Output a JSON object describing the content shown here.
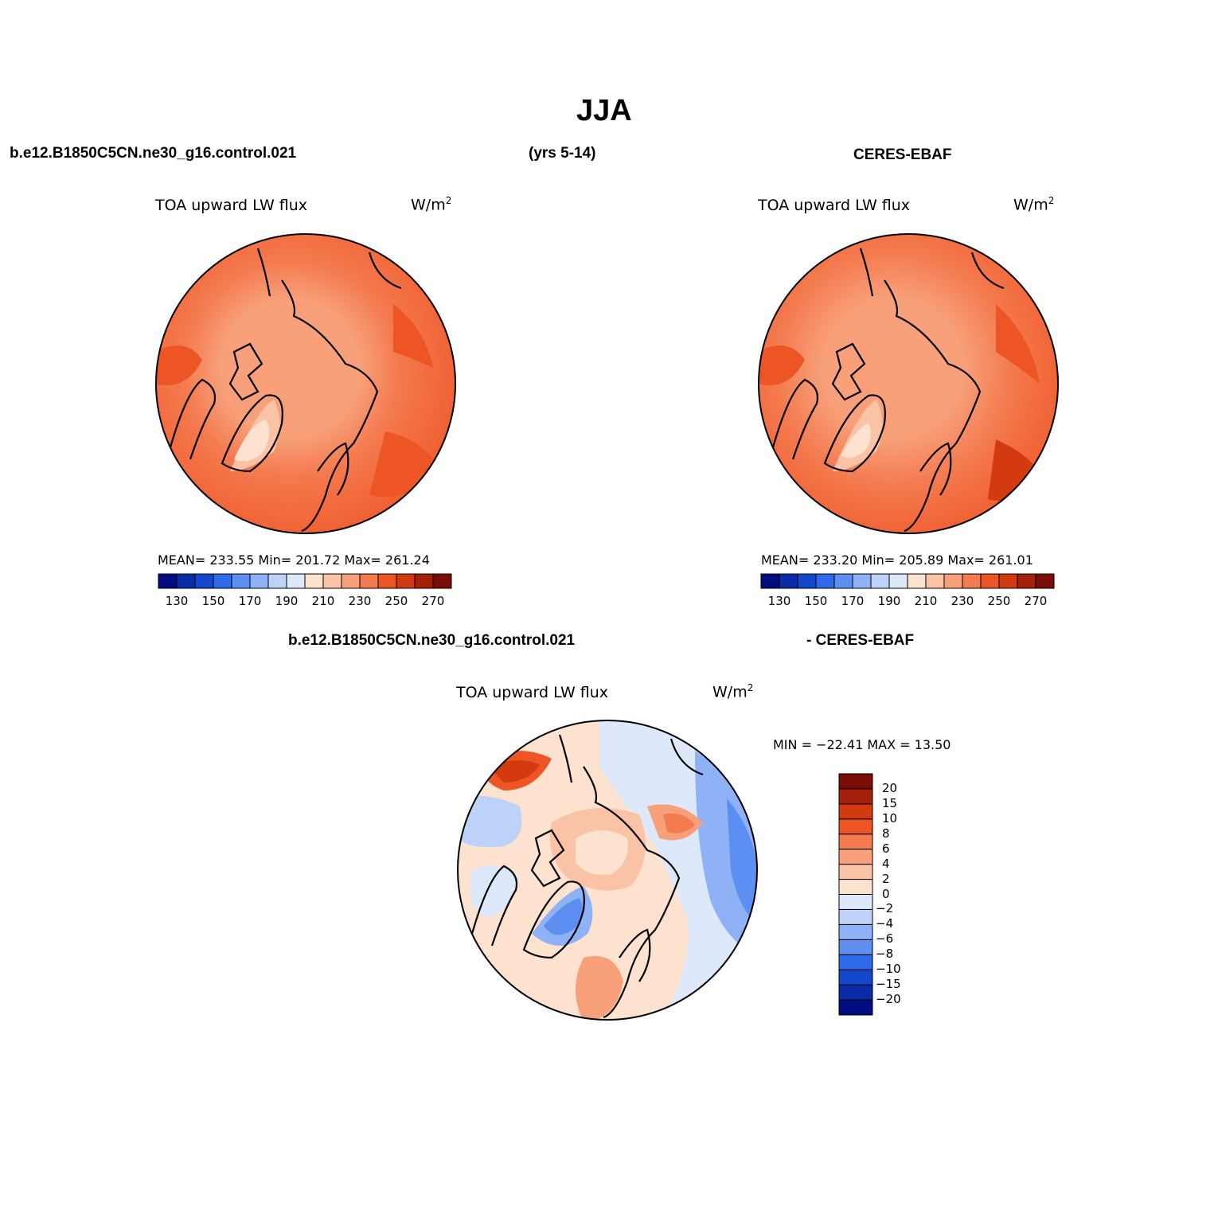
{
  "title": "JJA",
  "header": {
    "case_left": "b.e12.B1850C5CN.ne30_g16.control.021",
    "years": "(yrs 5-14)",
    "obs_right": "CERES-EBAF",
    "diff_case": "b.e12.B1850C5CN.ne30_g16.control.021",
    "diff_obs": "- CERES-EBAF"
  },
  "panels": {
    "model": {
      "variable": "TOA upward LW flux",
      "units_base": "W/m",
      "units_exp": "2",
      "stats": "MEAN= 233.55   Min= 201.72   Max= 261.24"
    },
    "obs": {
      "variable": "TOA upward LW flux",
      "units_base": "W/m",
      "units_exp": "2",
      "stats": "MEAN= 233.20   Min= 205.89   Max= 261.01"
    },
    "diff": {
      "variable": "TOA upward LW flux",
      "units_base": "W/m",
      "units_exp": "2",
      "stats": "MIN = −22.41  MAX =   13.50"
    }
  },
  "colorbar_abs": {
    "colors": [
      "#000d80",
      "#0a2ba8",
      "#1448cc",
      "#2e6aec",
      "#5d8ff2",
      "#8fb1f5",
      "#bcd2f8",
      "#dde9fb",
      "#fde2cf",
      "#fbc3a6",
      "#f8a07a",
      "#f47a4f",
      "#ee5525",
      "#d33a10",
      "#a5200a",
      "#7a0d05"
    ],
    "labels": [
      "130",
      "150",
      "170",
      "190",
      "210",
      "230",
      "250",
      "270"
    ]
  },
  "colorbar_diff": {
    "colors": [
      "#000d80",
      "#0a2ba8",
      "#1448cc",
      "#2e6aec",
      "#5d8ff2",
      "#8fb1f5",
      "#bcd2f8",
      "#dde9fb",
      "#fde2cf",
      "#fbc3a6",
      "#f8a07a",
      "#f47a4f",
      "#ee5525",
      "#d33a10",
      "#a5200a",
      "#7a0d05"
    ],
    "labels": [
      "20",
      "15",
      "10",
      "8",
      "6",
      "4",
      "2",
      "0",
      "−2",
      "−4",
      "−6",
      "−8",
      "−10",
      "−15",
      "−20"
    ]
  }
}
